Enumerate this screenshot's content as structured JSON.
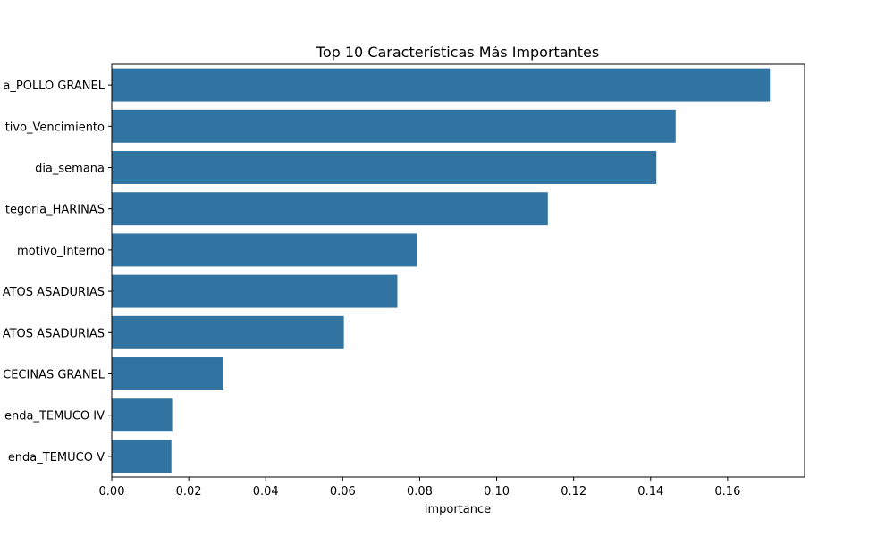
{
  "chart_data": {
    "type": "bar",
    "orientation": "horizontal",
    "title": "Top 10 Características Más Importantes",
    "xlabel": "importance",
    "ylabel": "",
    "categories": [
      "a_POLLO GRANEL",
      "tivo_Vencimiento",
      "dia_semana",
      "tegoria_HARINAS",
      "motivo_Interno",
      "ATOS ASADURIAS",
      "ATOS ASADURIAS",
      "CECINAS GRANEL",
      "enda_TEMUCO IV",
      "enda_TEMUCO V"
    ],
    "values": [
      0.171,
      0.1465,
      0.1415,
      0.1133,
      0.0793,
      0.0742,
      0.0603,
      0.029,
      0.0157,
      0.0155
    ],
    "xlim": [
      0,
      0.18
    ],
    "xticks": [
      0.0,
      0.02,
      0.04,
      0.06,
      0.08,
      0.1,
      0.12,
      0.14,
      0.16
    ],
    "xtick_labels": [
      "0.00",
      "0.02",
      "0.04",
      "0.06",
      "0.08",
      "0.10",
      "0.12",
      "0.14",
      "0.16"
    ],
    "grid": false,
    "legend": "none",
    "bar_color": "#3274a1"
  }
}
